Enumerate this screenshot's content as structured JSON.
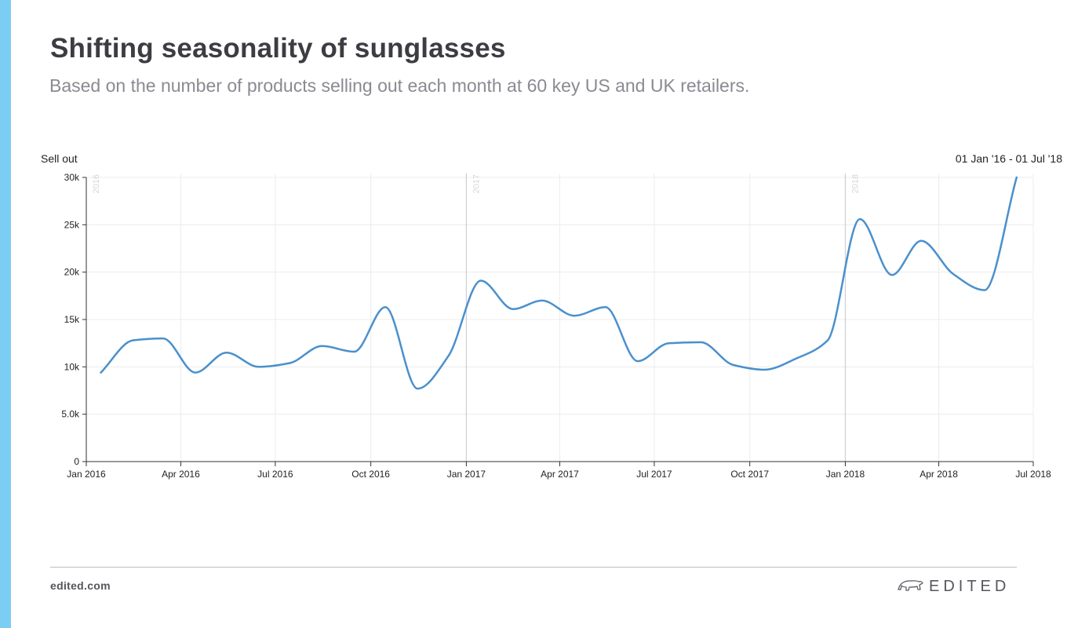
{
  "header": {
    "title": "Shifting seasonality of sunglasses",
    "subtitle": "Based on the number of products selling out each month at 60 key US and UK retailers."
  },
  "footer": {
    "site": "edited.com",
    "brand": "EDITED"
  },
  "colors": {
    "accent_bar": "#7ccdf4",
    "line": "#4a90cd",
    "grid": "#ececec",
    "year_marker": "#cfcfd4"
  },
  "chart_data": {
    "type": "line",
    "ylabel": "Sell out",
    "date_range_label": "01 Jan '16 - 01 Jul '18",
    "x_tick_labels": [
      "Jan 2016",
      "Apr 2016",
      "Jul 2016",
      "Oct 2016",
      "Jan 2017",
      "Apr 2017",
      "Jul 2017",
      "Oct 2017",
      "Jan 2018",
      "Apr 2018",
      "Jul 2018"
    ],
    "y_tick_labels": [
      "0",
      "5.0k",
      "10k",
      "15k",
      "20k",
      "25k",
      "30k"
    ],
    "y_ticks": [
      0,
      5000,
      10000,
      15000,
      20000,
      25000,
      30000
    ],
    "ylim": [
      0,
      30000
    ],
    "xlim": [
      "2016-01-01",
      "2018-07-01"
    ],
    "year_markers": [
      {
        "label": "2016",
        "date": "2016-01-01"
      },
      {
        "label": "2017",
        "date": "2017-01-01"
      },
      {
        "label": "2018",
        "date": "2018-01-01"
      }
    ],
    "grid": true,
    "series": [
      {
        "x": [
          "2016-01-15",
          "2016-02-15",
          "2016-03-15",
          "2016-04-15",
          "2016-05-15",
          "2016-06-15",
          "2016-07-15",
          "2016-08-15",
          "2016-09-15",
          "2016-10-15",
          "2016-11-15",
          "2016-12-15",
          "2017-01-15",
          "2017-02-15",
          "2017-03-15",
          "2017-04-15",
          "2017-05-15",
          "2017-06-15",
          "2017-07-15",
          "2017-08-15",
          "2017-09-15",
          "2017-10-15",
          "2017-11-15",
          "2017-12-15",
          "2018-01-15",
          "2018-02-15",
          "2018-03-15",
          "2018-04-15",
          "2018-05-15",
          "2018-06-15"
        ],
        "y": [
          9400,
          12800,
          13000,
          9400,
          11500,
          10000,
          10400,
          12200,
          11600,
          16300,
          7700,
          11200,
          19100,
          16100,
          17000,
          15400,
          16300,
          10600,
          12500,
          12600,
          10200,
          9700,
          10900,
          12800,
          25600,
          19700,
          23300,
          19800,
          18100,
          30000
        ]
      }
    ]
  }
}
